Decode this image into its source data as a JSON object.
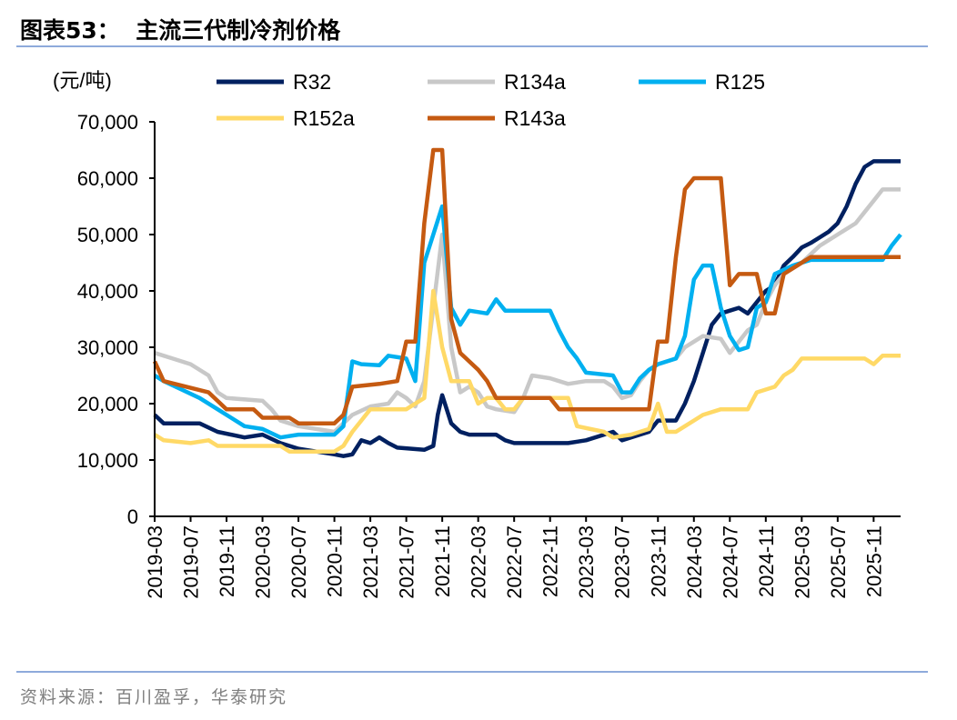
{
  "header": {
    "title": "图表53：  主流三代制冷剂价格"
  },
  "footer": {
    "source": "资料来源：百川盈孚，华泰研究"
  },
  "chart_data": {
    "type": "line",
    "title": "主流三代制冷剂价格",
    "ylabel": "(元/吨)",
    "ylim": [
      0,
      70000
    ],
    "yticks": [
      "0",
      "10,000",
      "20,000",
      "30,000",
      "40,000",
      "50,000",
      "60,000",
      "70,000"
    ],
    "xlim": [
      "2019-03",
      "2026-02"
    ],
    "xticks": [
      "2019-03",
      "2019-07",
      "2019-11",
      "2020-03",
      "2020-07",
      "2020-11",
      "2021-03",
      "2021-07",
      "2021-11",
      "2022-03",
      "2022-07",
      "2022-11",
      "2023-03",
      "2023-07",
      "2023-11",
      "2024-03",
      "2024-07",
      "2024-11",
      "2025-03",
      "2025-07",
      "2025-11"
    ],
    "grid": false,
    "legend": "top",
    "series": [
      {
        "name": "R32",
        "color": "#002060",
        "points": [
          [
            "2019-03",
            18000
          ],
          [
            "2019-04",
            16500
          ],
          [
            "2019-08",
            16500
          ],
          [
            "2019-10",
            15000
          ],
          [
            "2020-01",
            14000
          ],
          [
            "2020-03",
            14500
          ],
          [
            "2020-05",
            13000
          ],
          [
            "2020-07",
            12000
          ],
          [
            "2020-09",
            11500
          ],
          [
            "2020-11",
            11000
          ],
          [
            "2020-12",
            10700
          ],
          [
            "2021-01",
            11000
          ],
          [
            "2021-02",
            13500
          ],
          [
            "2021-03",
            13000
          ],
          [
            "2021-04",
            14000
          ],
          [
            "2021-05",
            13000
          ],
          [
            "2021-06",
            12200
          ],
          [
            "2021-09",
            11800
          ],
          [
            "2021-10",
            12500
          ],
          [
            "2021-10.5",
            18000
          ],
          [
            "2021-11",
            21500
          ],
          [
            "2021-12",
            16500
          ],
          [
            "2022-01",
            15000
          ],
          [
            "2022-02",
            14500
          ],
          [
            "2022-05",
            14500
          ],
          [
            "2022-06",
            13500
          ],
          [
            "2022-07",
            13000
          ],
          [
            "2022-11",
            13000
          ],
          [
            "2023-01",
            13000
          ],
          [
            "2023-03",
            13500
          ],
          [
            "2023-05",
            14500
          ],
          [
            "2023-06",
            15000
          ],
          [
            "2023-07",
            13500
          ],
          [
            "2023-08",
            14000
          ],
          [
            "2023-10",
            15000
          ],
          [
            "2023-11",
            17000
          ],
          [
            "2024-01",
            17000
          ],
          [
            "2024-02",
            20000
          ],
          [
            "2024-03",
            24000
          ],
          [
            "2024-04",
            29000
          ],
          [
            "2024-05",
            34000
          ],
          [
            "2024-06",
            36000
          ],
          [
            "2024-07",
            36500
          ],
          [
            "2024-08",
            37000
          ],
          [
            "2024-09",
            36000
          ],
          [
            "2024-10",
            38000
          ],
          [
            "2024-11",
            40000
          ],
          [
            "2024-12",
            41000
          ],
          [
            "2025-01",
            44500
          ],
          [
            "2025-02",
            46000
          ],
          [
            "2025-03",
            47700
          ],
          [
            "2025-04",
            48500
          ],
          [
            "2025-05",
            49500
          ],
          [
            "2025-06",
            50500
          ],
          [
            "2025-07",
            52000
          ],
          [
            "2025-08",
            55000
          ],
          [
            "2025-09",
            59000
          ],
          [
            "2025-10",
            62000
          ],
          [
            "2025-11",
            63000
          ],
          [
            "2026-02",
            63000
          ]
        ]
      },
      {
        "name": "R134a",
        "color": "#c8c8c8",
        "points": [
          [
            "2019-03",
            29000
          ],
          [
            "2019-05",
            28000
          ],
          [
            "2019-07",
            27000
          ],
          [
            "2019-09",
            25000
          ],
          [
            "2019-10",
            22000
          ],
          [
            "2019-11",
            21000
          ],
          [
            "2020-03",
            20500
          ],
          [
            "2020-04",
            19000
          ],
          [
            "2020-05",
            17000
          ],
          [
            "2020-07",
            16000
          ],
          [
            "2020-09",
            15500
          ],
          [
            "2020-11",
            15000
          ],
          [
            "2021-01",
            18000
          ],
          [
            "2021-03",
            19500
          ],
          [
            "2021-05",
            20000
          ],
          [
            "2021-06",
            22000
          ],
          [
            "2021-07",
            21000
          ],
          [
            "2021-08",
            19500
          ],
          [
            "2021-09",
            24000
          ],
          [
            "2021-10",
            37000
          ],
          [
            "2021-11",
            50000
          ],
          [
            "2021-12",
            30000
          ],
          [
            "2022-01",
            22000
          ],
          [
            "2022-02",
            23000
          ],
          [
            "2022-03",
            22000
          ],
          [
            "2022-04",
            19500
          ],
          [
            "2022-05",
            19000
          ],
          [
            "2022-07",
            18500
          ],
          [
            "2022-08",
            21000
          ],
          [
            "2022-09",
            25000
          ],
          [
            "2022-11",
            24500
          ],
          [
            "2023-01",
            23500
          ],
          [
            "2023-03",
            24000
          ],
          [
            "2023-05",
            24000
          ],
          [
            "2023-06",
            23000
          ],
          [
            "2023-07",
            21000
          ],
          [
            "2023-08",
            21500
          ],
          [
            "2023-09",
            24000
          ],
          [
            "2023-10",
            26000
          ],
          [
            "2023-11",
            27000
          ],
          [
            "2024-01",
            28000
          ],
          [
            "2024-02",
            30000
          ],
          [
            "2024-03",
            31000
          ],
          [
            "2024-04",
            32000
          ],
          [
            "2024-06",
            31500
          ],
          [
            "2024-07",
            29000
          ],
          [
            "2024-08",
            31000
          ],
          [
            "2024-09",
            33000
          ],
          [
            "2024-10",
            34000
          ],
          [
            "2024-11",
            38000
          ],
          [
            "2024-12",
            41000
          ],
          [
            "2025-01",
            43000
          ],
          [
            "2025-03",
            45000
          ],
          [
            "2025-05",
            48000
          ],
          [
            "2025-07",
            50000
          ],
          [
            "2025-09",
            52000
          ],
          [
            "2025-10",
            54000
          ],
          [
            "2025-11",
            56000
          ],
          [
            "2025-12",
            58000
          ],
          [
            "2026-02",
            58000
          ]
        ]
      },
      {
        "name": "R125",
        "color": "#00b0f0",
        "points": [
          [
            "2019-03",
            25000
          ],
          [
            "2019-04",
            24000
          ],
          [
            "2019-06",
            22500
          ],
          [
            "2019-08",
            21000
          ],
          [
            "2019-10",
            19000
          ],
          [
            "2019-11",
            18000
          ],
          [
            "2020-01",
            16000
          ],
          [
            "2020-03",
            15500
          ],
          [
            "2020-05",
            14000
          ],
          [
            "2020-07",
            14500
          ],
          [
            "2020-11",
            14500
          ],
          [
            "2020-12",
            16000
          ],
          [
            "2021-01",
            27500
          ],
          [
            "2021-02",
            27000
          ],
          [
            "2021-04",
            26800
          ],
          [
            "2021-05",
            28500
          ],
          [
            "2021-07",
            28000
          ],
          [
            "2021-08",
            24000
          ],
          [
            "2021-09",
            45000
          ],
          [
            "2021-10",
            50000
          ],
          [
            "2021-11",
            55000
          ],
          [
            "2021-12",
            37000
          ],
          [
            "2022-01",
            34000
          ],
          [
            "2022-02",
            36500
          ],
          [
            "2022-04",
            36000
          ],
          [
            "2022-05",
            38500
          ],
          [
            "2022-06",
            36500
          ],
          [
            "2022-11",
            36500
          ],
          [
            "2022-12",
            33000
          ],
          [
            "2023-01",
            30000
          ],
          [
            "2023-02",
            28000
          ],
          [
            "2023-03",
            25500
          ],
          [
            "2023-06",
            25000
          ],
          [
            "2023-07",
            22000
          ],
          [
            "2023-08",
            22000
          ],
          [
            "2023-09",
            24500
          ],
          [
            "2023-10",
            26000
          ],
          [
            "2023-11",
            27000
          ],
          [
            "2024-01",
            28000
          ],
          [
            "2024-02",
            32000
          ],
          [
            "2024-03",
            42000
          ],
          [
            "2024-04",
            44500
          ],
          [
            "2024-05",
            44500
          ],
          [
            "2024-06",
            37000
          ],
          [
            "2024-07",
            32000
          ],
          [
            "2024-08",
            29500
          ],
          [
            "2024-09",
            30000
          ],
          [
            "2024-10",
            37000
          ],
          [
            "2024-11",
            38000
          ],
          [
            "2024-12",
            43000
          ],
          [
            "2025-02",
            44500
          ],
          [
            "2025-04",
            45500
          ],
          [
            "2025-12",
            45500
          ],
          [
            "2026-01",
            48000
          ],
          [
            "2026-02",
            50000
          ]
        ]
      },
      {
        "name": "R152a",
        "color": "#ffd966",
        "points": [
          [
            "2019-03",
            14500
          ],
          [
            "2019-04",
            13500
          ],
          [
            "2019-07",
            13000
          ],
          [
            "2019-09",
            13500
          ],
          [
            "2019-10",
            12500
          ],
          [
            "2020-05",
            12500
          ],
          [
            "2020-06",
            11500
          ],
          [
            "2020-11",
            11500
          ],
          [
            "2020-12",
            12500
          ],
          [
            "2021-01",
            15000
          ],
          [
            "2021-02",
            17000
          ],
          [
            "2021-03",
            19000
          ],
          [
            "2021-07",
            19000
          ],
          [
            "2021-08",
            20000
          ],
          [
            "2021-09",
            21000
          ],
          [
            "2021-10",
            40000
          ],
          [
            "2021-11",
            30000
          ],
          [
            "2021-12",
            24000
          ],
          [
            "2022-02",
            24000
          ],
          [
            "2022-03",
            20000
          ],
          [
            "2022-04",
            21000
          ],
          [
            "2022-05",
            21000
          ],
          [
            "2022-06",
            19000
          ],
          [
            "2022-07",
            19000
          ],
          [
            "2022-08",
            21000
          ],
          [
            "2023-01",
            21000
          ],
          [
            "2023-02",
            16000
          ],
          [
            "2023-05",
            15000
          ],
          [
            "2023-06",
            14000
          ],
          [
            "2023-08",
            14500
          ],
          [
            "2023-10",
            15500
          ],
          [
            "2023-11",
            20000
          ],
          [
            "2023-12",
            15000
          ],
          [
            "2024-01",
            15000
          ],
          [
            "2024-02",
            16000
          ],
          [
            "2024-03",
            17000
          ],
          [
            "2024-04",
            18000
          ],
          [
            "2024-06",
            19000
          ],
          [
            "2024-09",
            19000
          ],
          [
            "2024-10",
            22000
          ],
          [
            "2024-12",
            23000
          ],
          [
            "2025-01",
            25000
          ],
          [
            "2025-02",
            26000
          ],
          [
            "2025-03",
            28000
          ],
          [
            "2025-10",
            28000
          ],
          [
            "2025-11",
            27000
          ],
          [
            "2025-12",
            28500
          ],
          [
            "2026-02",
            28500
          ]
        ]
      },
      {
        "name": "R143a",
        "color": "#c55a11",
        "points": [
          [
            "2019-03",
            27500
          ],
          [
            "2019-04",
            24000
          ],
          [
            "2019-09",
            22000
          ],
          [
            "2019-11",
            19000
          ],
          [
            "2020-02",
            19000
          ],
          [
            "2020-03",
            17500
          ],
          [
            "2020-06",
            17500
          ],
          [
            "2020-07",
            16500
          ],
          [
            "2020-11",
            16500
          ],
          [
            "2020-12",
            18000
          ],
          [
            "2021-01",
            23000
          ],
          [
            "2021-04",
            23500
          ],
          [
            "2021-06",
            24000
          ],
          [
            "2021-07",
            31000
          ],
          [
            "2021-08",
            31000
          ],
          [
            "2021-09",
            52000
          ],
          [
            "2021-10",
            65000
          ],
          [
            "2021-11",
            65000
          ],
          [
            "2021-12",
            35000
          ],
          [
            "2022-01",
            29000
          ],
          [
            "2022-03",
            26000
          ],
          [
            "2022-04",
            24000
          ],
          [
            "2022-05",
            21000
          ],
          [
            "2022-11",
            21000
          ],
          [
            "2022-12",
            19000
          ],
          [
            "2023-10",
            19000
          ],
          [
            "2023-11",
            31000
          ],
          [
            "2023-12",
            31000
          ],
          [
            "2024-01",
            46000
          ],
          [
            "2024-02",
            58000
          ],
          [
            "2024-03",
            60000
          ],
          [
            "2024-06",
            60000
          ],
          [
            "2024-07",
            41000
          ],
          [
            "2024-08",
            43000
          ],
          [
            "2024-10",
            43000
          ],
          [
            "2024-11",
            36000
          ],
          [
            "2024-12",
            36000
          ],
          [
            "2025-01",
            43000
          ],
          [
            "2025-02",
            44000
          ],
          [
            "2025-04",
            46000
          ],
          [
            "2026-02",
            46000
          ]
        ]
      }
    ]
  }
}
